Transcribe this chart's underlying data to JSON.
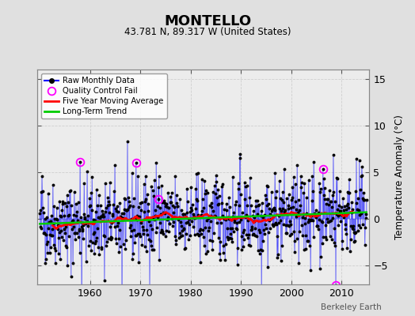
{
  "title": "MONTELLO",
  "subtitle": "43.781 N, 89.317 W (United States)",
  "ylabel": "Temperature Anomaly (°C)",
  "credit": "Berkeley Earth",
  "year_start": 1950,
  "year_end": 2014,
  "ylim": [
    -7,
    16
  ],
  "yticks": [
    -5,
    0,
    5,
    10,
    15
  ],
  "xticks": [
    1960,
    1970,
    1980,
    1990,
    2000,
    2010
  ],
  "bg_color": "#e0e0e0",
  "plot_bg_color": "#ececec",
  "raw_color": "#0000ff",
  "raw_dot_color": "#000000",
  "qc_color": "#ff00ff",
  "moving_avg_color": "#ff0000",
  "trend_color": "#00cc00",
  "seed": 42
}
